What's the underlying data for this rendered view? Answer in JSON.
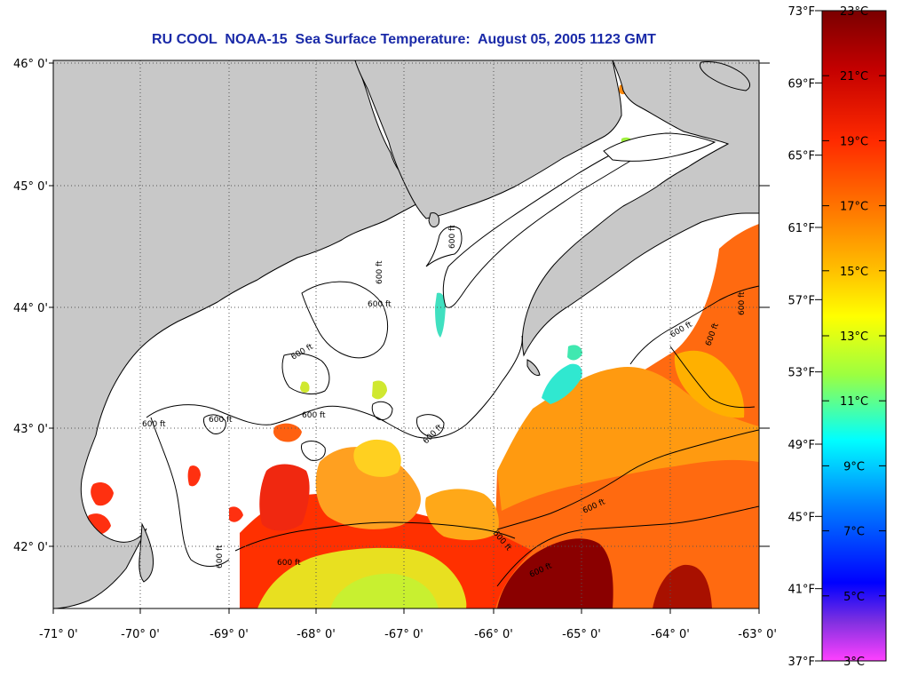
{
  "map": {
    "title": "RU COOL  NOAA-15  Sea Surface Temperature:  August 05, 2005 1123 GMT",
    "lat_labels": [
      "46° 0'",
      "45° 0'",
      "44° 0'",
      "43° 0'",
      "42° 0'"
    ],
    "lon_labels": [
      "-71° 0'",
      "-70° 0'",
      "-69° 0'",
      "-68° 0'",
      "-67° 0'",
      "-66° 0'",
      "-65° 0'",
      "-64° 0'",
      "-63° 0'"
    ],
    "contour_label": "600 ft",
    "colors": {
      "land": "#c8c8c8",
      "coastline": "#000000",
      "no_data": "#ffffff",
      "grid": "#555555"
    }
  },
  "colorbar": {
    "fahrenheit_labels": [
      "73°F",
      "69°F",
      "65°F",
      "61°F",
      "57°F",
      "53°F",
      "49°F",
      "45°F",
      "41°F",
      "37°F"
    ],
    "celsius_labels": [
      "23°C",
      "21°C",
      "19°C",
      "17°C",
      "15°C",
      "13°C",
      "11°C",
      "9°C",
      "7°C",
      "5°C",
      "3°C"
    ],
    "stops": [
      "#7a0000",
      "#c40000",
      "#ff2a00",
      "#ff7a00",
      "#ffc000",
      "#ffff00",
      "#9cff40",
      "#00ffff",
      "#0080ff",
      "#0000ff",
      "#8030e0",
      "#ff40ff"
    ]
  }
}
